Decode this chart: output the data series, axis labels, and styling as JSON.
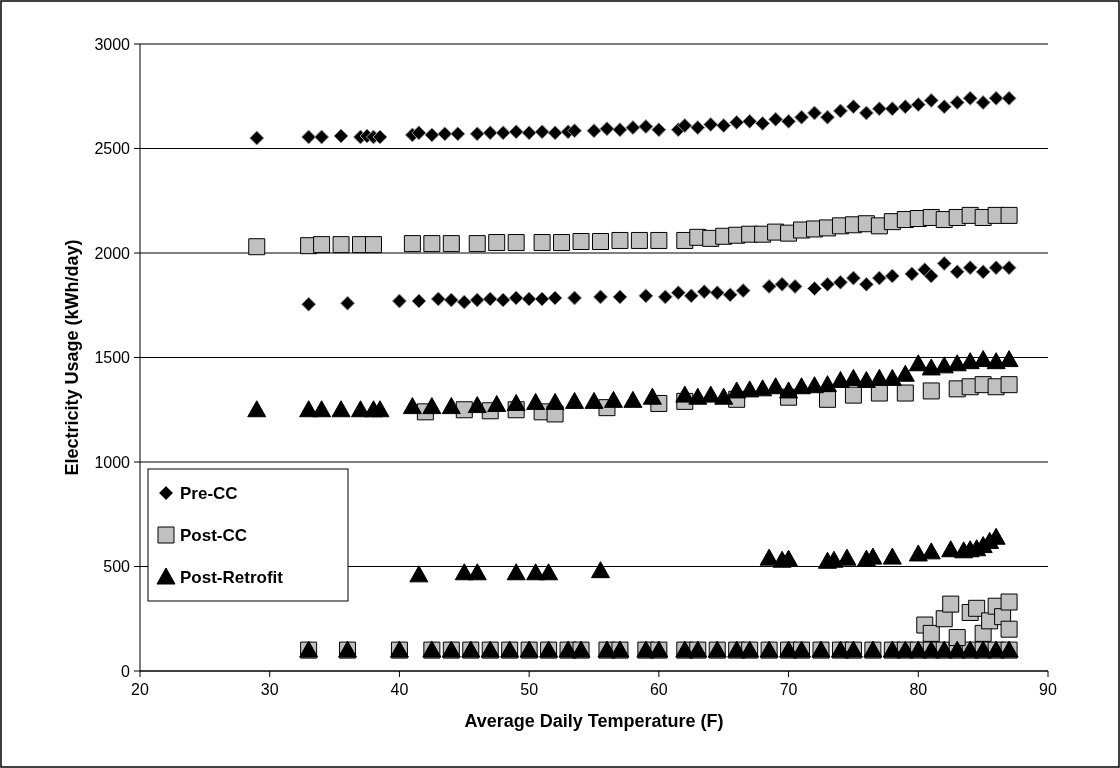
{
  "chart_data": {
    "type": "scatter",
    "xlabel": "Average Daily Temperature (F)",
    "ylabel": "Electricity Usage (kWh/day)",
    "xlim": [
      20,
      90
    ],
    "xticks": [
      20,
      30,
      40,
      50,
      60,
      70,
      80,
      90
    ],
    "ylim": [
      0,
      3000
    ],
    "yticks": [
      0,
      500,
      1000,
      1500,
      2000,
      2500,
      3000
    ],
    "grid": "y",
    "legend": "bottom left",
    "series": [
      {
        "name": "Pre-CC",
        "color": "#000000",
        "marker": "diamond",
        "x": [
          29,
          33,
          34,
          35.5,
          37,
          37.5,
          38,
          38.5,
          41,
          41.5,
          42.5,
          43.5,
          44.5,
          46,
          47,
          48,
          49,
          50,
          51,
          52,
          53,
          53.5,
          55,
          56,
          57,
          58,
          59,
          60,
          61.5,
          62,
          63,
          64,
          65,
          66,
          67,
          68,
          69,
          70,
          71,
          72,
          73,
          74,
          75,
          76,
          77,
          78,
          79,
          80,
          81,
          82,
          83,
          84,
          85,
          86,
          87,
          33,
          36,
          40,
          41.5,
          43,
          44,
          45,
          46,
          47,
          48,
          49,
          50,
          51,
          52,
          53.5,
          55.5,
          57,
          59,
          60.5,
          61.5,
          62.5,
          63.5,
          64.5,
          65.5,
          66.5,
          68.5,
          69.5,
          70.5,
          72,
          73,
          74,
          75,
          76,
          77,
          78,
          79.5,
          80.5,
          81,
          82,
          83,
          84,
          85,
          86,
          87
        ],
        "values": [
          2550,
          2555,
          2555,
          2560,
          2555,
          2560,
          2555,
          2555,
          2565,
          2575,
          2565,
          2570,
          2570,
          2570,
          2575,
          2575,
          2580,
          2575,
          2580,
          2575,
          2580,
          2585,
          2585,
          2595,
          2590,
          2600,
          2605,
          2590,
          2590,
          2610,
          2600,
          2615,
          2610,
          2625,
          2630,
          2620,
          2640,
          2630,
          2650,
          2670,
          2650,
          2680,
          2700,
          2670,
          2690,
          2690,
          2700,
          2710,
          2730,
          2700,
          2720,
          2740,
          2720,
          2740,
          2740,
          1755,
          1760,
          1770,
          1770,
          1780,
          1775,
          1765,
          1775,
          1780,
          1775,
          1785,
          1780,
          1780,
          1785,
          1785,
          1790,
          1790,
          1795,
          1790,
          1810,
          1795,
          1815,
          1810,
          1800,
          1820,
          1840,
          1850,
          1840,
          1830,
          1850,
          1860,
          1880,
          1850,
          1880,
          1890,
          1900,
          1920,
          1890,
          1950,
          1910,
          1930,
          1910,
          1930,
          1930
        ]
      },
      {
        "name": "Post-CC",
        "color": "#c0c0c0",
        "marker": "square",
        "x": [
          29,
          33,
          34,
          35.5,
          37,
          38,
          41,
          42.5,
          44,
          46,
          47.5,
          49,
          51,
          52.5,
          54,
          55.5,
          57,
          58.5,
          60,
          62,
          63,
          64,
          65,
          66,
          67,
          68,
          69,
          70,
          71,
          72,
          73,
          74,
          75,
          76,
          77,
          78,
          79,
          80,
          81,
          82,
          83,
          84,
          85,
          86,
          87,
          42,
          45,
          47,
          49,
          51,
          52,
          56,
          60,
          62,
          66,
          70,
          73,
          75,
          77,
          79,
          81,
          83,
          84,
          85,
          86,
          87,
          33,
          36,
          40,
          42.5,
          44,
          45.5,
          47,
          48.5,
          50,
          51.5,
          53,
          54,
          56,
          57,
          59,
          60,
          62,
          63,
          64.5,
          66,
          67,
          68.5,
          70,
          71,
          72.5,
          74,
          75,
          76.5,
          78,
          79,
          80,
          81,
          82,
          83,
          84,
          85,
          86,
          87,
          80.5,
          81,
          82,
          82.5,
          83,
          84,
          84.5,
          85,
          85.5,
          86,
          86.5,
          87,
          87
        ],
        "values": [
          2030,
          2035,
          2040,
          2040,
          2040,
          2040,
          2045,
          2045,
          2045,
          2045,
          2050,
          2050,
          2050,
          2050,
          2055,
          2055,
          2060,
          2060,
          2060,
          2060,
          2075,
          2070,
          2080,
          2085,
          2090,
          2090,
          2100,
          2095,
          2110,
          2115,
          2120,
          2130,
          2135,
          2140,
          2130,
          2150,
          2160,
          2165,
          2170,
          2160,
          2170,
          2180,
          2170,
          2180,
          2180,
          1240,
          1250,
          1245,
          1250,
          1240,
          1230,
          1260,
          1280,
          1290,
          1300,
          1310,
          1300,
          1320,
          1330,
          1330,
          1340,
          1350,
          1360,
          1370,
          1360,
          1370,
          100,
          100,
          100,
          100,
          100,
          100,
          100,
          100,
          100,
          100,
          100,
          100,
          100,
          100,
          100,
          100,
          100,
          100,
          100,
          100,
          100,
          100,
          100,
          100,
          100,
          100,
          100,
          100,
          100,
          100,
          100,
          100,
          100,
          100,
          100,
          100,
          100,
          100,
          220,
          180,
          250,
          320,
          160,
          280,
          300,
          180,
          240,
          310,
          260,
          330,
          200
        ]
      },
      {
        "name": "Post-Retrofit",
        "color": "#000000",
        "marker": "triangle",
        "x": [
          29,
          33,
          34,
          35.5,
          37,
          38,
          38.5,
          41,
          42.5,
          44,
          46,
          47.5,
          49,
          50.5,
          52,
          53.5,
          55,
          56.5,
          58,
          59.5,
          62,
          63,
          64,
          65,
          66,
          67,
          68,
          69,
          70,
          71,
          72,
          73,
          74,
          75,
          76,
          77,
          78,
          79,
          80,
          81,
          82,
          83,
          84,
          85,
          86,
          87,
          41.5,
          45,
          46,
          49,
          50.5,
          51.5,
          55.5,
          68.5,
          69.5,
          70,
          73,
          73.5,
          74.5,
          76,
          76.5,
          78,
          80,
          81,
          82.5,
          83.5,
          84,
          84.5,
          85,
          85.5,
          86,
          33,
          36,
          40,
          42.5,
          44,
          45.5,
          47,
          48.5,
          50,
          51.5,
          53,
          54,
          56,
          57,
          59,
          60,
          62,
          63,
          64.5,
          66,
          67,
          68.5,
          70,
          71,
          72.5,
          74,
          75,
          76.5,
          78,
          79,
          80,
          81,
          82,
          83,
          84,
          85,
          86,
          87
        ],
        "values": [
          1250,
          1250,
          1250,
          1250,
          1250,
          1250,
          1250,
          1265,
          1265,
          1265,
          1270,
          1275,
          1280,
          1285,
          1285,
          1290,
          1290,
          1295,
          1295,
          1310,
          1320,
          1310,
          1320,
          1310,
          1340,
          1345,
          1350,
          1360,
          1340,
          1360,
          1365,
          1370,
          1390,
          1400,
          1390,
          1400,
          1400,
          1420,
          1470,
          1450,
          1460,
          1470,
          1480,
          1490,
          1480,
          1490,
          460,
          470,
          470,
          470,
          470,
          470,
          480,
          540,
          530,
          535,
          525,
          530,
          540,
          535,
          545,
          545,
          560,
          570,
          580,
          575,
          580,
          585,
          600,
          620,
          640,
          100,
          100,
          100,
          100,
          100,
          100,
          100,
          100,
          100,
          100,
          100,
          100,
          100,
          100,
          100,
          100,
          100,
          100,
          100,
          100,
          100,
          100,
          100,
          100,
          100,
          100,
          100,
          100,
          100,
          100,
          100,
          100,
          100,
          100,
          100,
          100,
          100,
          100
        ]
      }
    ]
  }
}
